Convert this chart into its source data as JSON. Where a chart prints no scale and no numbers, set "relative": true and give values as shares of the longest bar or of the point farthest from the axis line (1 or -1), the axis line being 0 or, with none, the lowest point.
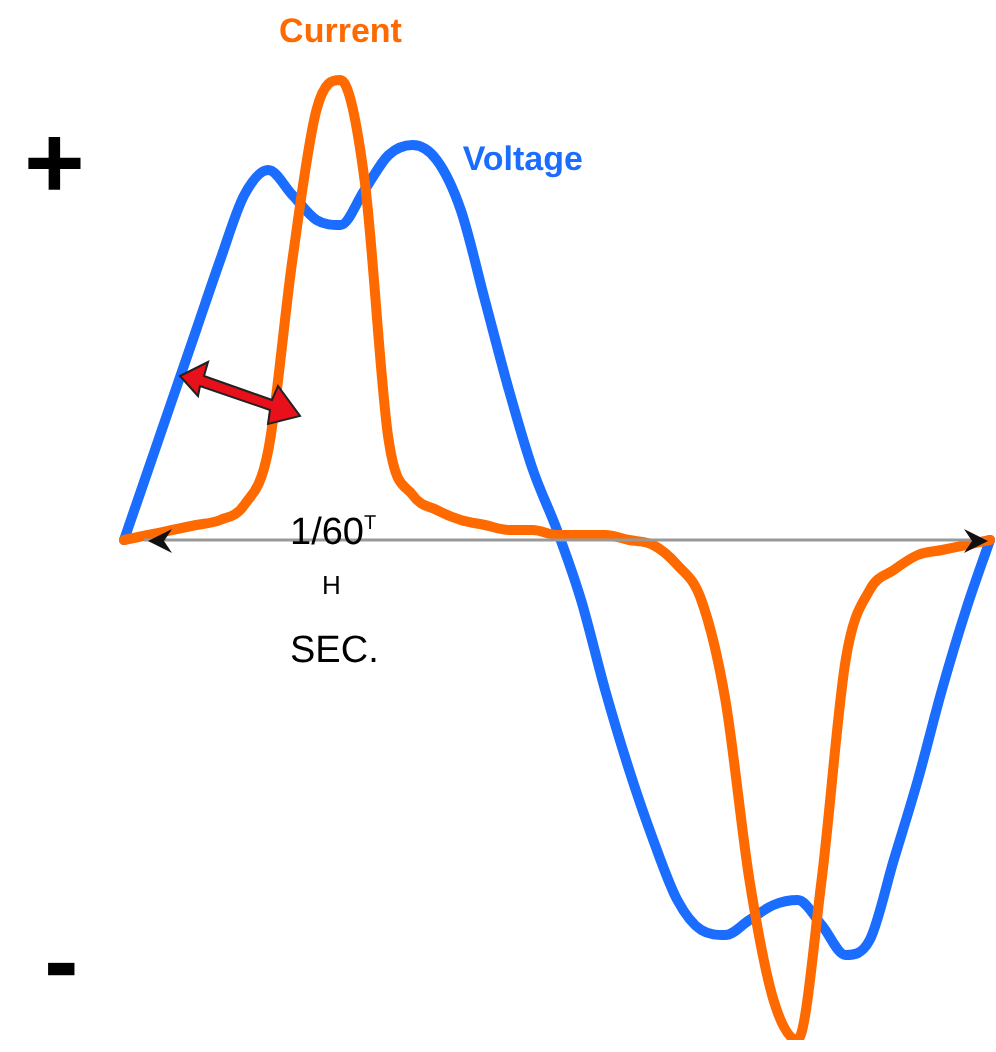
{
  "chart_data": {
    "type": "line",
    "relative": true,
    "categories": [
      null,
      null,
      null,
      null,
      null,
      null,
      null,
      null,
      null,
      null,
      null,
      null,
      null,
      null,
      null,
      null,
      null,
      null,
      null,
      null,
      null,
      null,
      null,
      null,
      null,
      null,
      null,
      null,
      null,
      null,
      null,
      null,
      null,
      null,
      null,
      null,
      null
    ],
    "series": [
      {
        "name": "Current",
        "color": "#ff6a00",
        "values": [
          0,
          0.01,
          0.02,
          0.03,
          0.04,
          0.07,
          0.18,
          0.56,
          0.86,
          0.92,
          0.72,
          0.2,
          0.09,
          0.06,
          0.04,
          0.03,
          0.02,
          0.02,
          0.01,
          0.01,
          0.01,
          0,
          -0.01,
          -0.05,
          -0.12,
          -0.32,
          -0.68,
          -0.92,
          -1,
          -0.68,
          -0.24,
          -0.1,
          -0.06,
          -0.03,
          -0.02,
          -0.01,
          0
        ]
      },
      {
        "name": "Voltage",
        "color": "#1a6dff",
        "values": [
          0,
          0.14,
          0.28,
          0.42,
          0.56,
          0.69,
          0.74,
          0.69,
          0.64,
          0.63,
          0.7,
          0.77,
          0.79,
          0.76,
          0.66,
          0.48,
          0.3,
          0.14,
          0.02,
          -0.12,
          -0.3,
          -0.46,
          -0.6,
          -0.72,
          -0.78,
          -0.79,
          -0.76,
          -0.73,
          -0.72,
          -0.77,
          -0.83,
          -0.8,
          -0.64,
          -0.48,
          -0.3,
          -0.14,
          0
        ]
      }
    ],
    "annotations": [
      "1/60$^{T}$",
      "H",
      "SEC.",
      "+",
      "-"
    ],
    "ref_lines": [
      {
        "axis": "y",
        "value": 0,
        "color": "#999999"
      }
    ],
    "grid": false,
    "legend": false,
    "marker": "none",
    "line_style": "solid"
  }
}
